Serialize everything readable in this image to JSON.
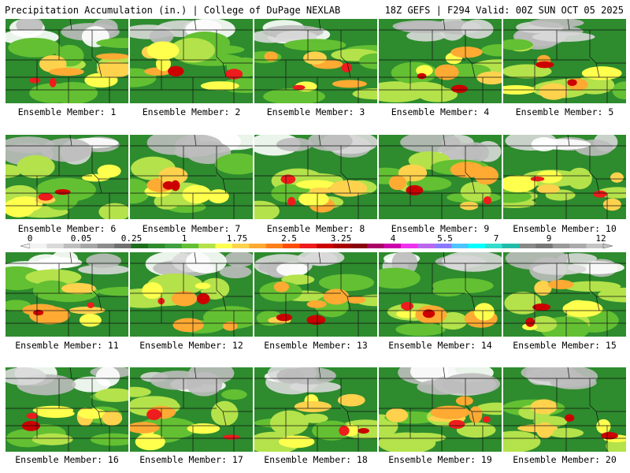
{
  "header": {
    "title": "Precipitation Accumulation (in.) | College of DuPage NEXLAB",
    "run_info": "18Z GEFS | F294 Valid: 00Z SUN OCT 05 2025"
  },
  "legend": {
    "tick_labels": [
      "0",
      "0.05",
      "0.25",
      "1",
      "1.75",
      "2.5",
      "3.25",
      "4",
      "5.5",
      "7",
      "9",
      "12"
    ],
    "colors": [
      "#f2f2f2",
      "#d9d9d9",
      "#bdbdbd",
      "#a6a6a6",
      "#8c8c8c",
      "#707070",
      "#1e6e1e",
      "#2e8b2e",
      "#3fa13f",
      "#63c032",
      "#b4e24a",
      "#ffff4d",
      "#ffd24d",
      "#ffaa33",
      "#ff7f1a",
      "#ff4d00",
      "#ee1c1c",
      "#cc0000",
      "#a80000",
      "#880010",
      "#aa0066",
      "#cc00aa",
      "#ee33ee",
      "#bb66ee",
      "#8a7aff",
      "#4dc4ff",
      "#00ffff",
      "#33ddcc",
      "#22bbaa",
      "#888888",
      "#777777",
      "#999999",
      "#aaaaaa",
      "#c4c4c4"
    ]
  },
  "members": [
    {
      "label": "Ensemble Member: 1"
    },
    {
      "label": "Ensemble Member: 2"
    },
    {
      "label": "Ensemble Member: 3"
    },
    {
      "label": "Ensemble Member: 4"
    },
    {
      "label": "Ensemble Member: 5"
    },
    {
      "label": "Ensemble Member: 6"
    },
    {
      "label": "Ensemble Member: 7"
    },
    {
      "label": "Ensemble Member: 8"
    },
    {
      "label": "Ensemble Member: 9"
    },
    {
      "label": "Ensemble Member: 10"
    },
    {
      "label": "Ensemble Member: 11"
    },
    {
      "label": "Ensemble Member: 12"
    },
    {
      "label": "Ensemble Member: 13"
    },
    {
      "label": "Ensemble Member: 14"
    },
    {
      "label": "Ensemble Member: 15"
    },
    {
      "label": "Ensemble Member: 16"
    },
    {
      "label": "Ensemble Member: 17"
    },
    {
      "label": "Ensemble Member: 18"
    },
    {
      "label": "Ensemble Member: 19"
    },
    {
      "label": "Ensemble Member: 20"
    }
  ]
}
